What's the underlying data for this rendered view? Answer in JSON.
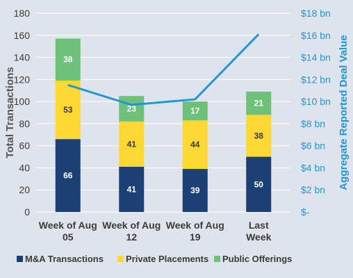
{
  "chart_data": {
    "type": "bar",
    "stacked": true,
    "categories": [
      [
        "Week of Aug",
        "05"
      ],
      [
        "Week of Aug",
        "12"
      ],
      [
        "Week of Aug",
        "19"
      ],
      [
        "Last",
        "Week"
      ]
    ],
    "series": [
      {
        "name": "M&A Transactions",
        "values": [
          66,
          41,
          39,
          50
        ],
        "color": "#1c3f74",
        "label_color": "#ffffff"
      },
      {
        "name": "Private Placements",
        "values": [
          53,
          41,
          44,
          38
        ],
        "color": "#fdd835",
        "label_color": "#3a3a3a"
      },
      {
        "name": "Public Offerings",
        "values": [
          38,
          23,
          17,
          21
        ],
        "color": "#6ec07a",
        "label_color": "#ffffff"
      }
    ],
    "line": {
      "name": "Aggregate Reported Deal Value",
      "values": [
        11.5,
        9.7,
        10.2,
        16.1
      ],
      "color": "#1f97d4"
    },
    "ylabel": "Total Transactions",
    "y2label": "Aggregate Reported Deal Value",
    "ylim": [
      0,
      180
    ],
    "yticks": [
      0,
      20,
      40,
      60,
      80,
      100,
      120,
      140,
      160,
      180
    ],
    "y2lim": [
      0,
      18
    ],
    "y2ticks": [
      "$-",
      "$2 bn",
      "$4 bn",
      "$6 bn",
      "$8 bn",
      "$10 bn",
      "$12 bn",
      "$14 bn",
      "$16 bn",
      "$18 bn"
    ],
    "legend_position": "bottom",
    "grid": "horizontal"
  }
}
